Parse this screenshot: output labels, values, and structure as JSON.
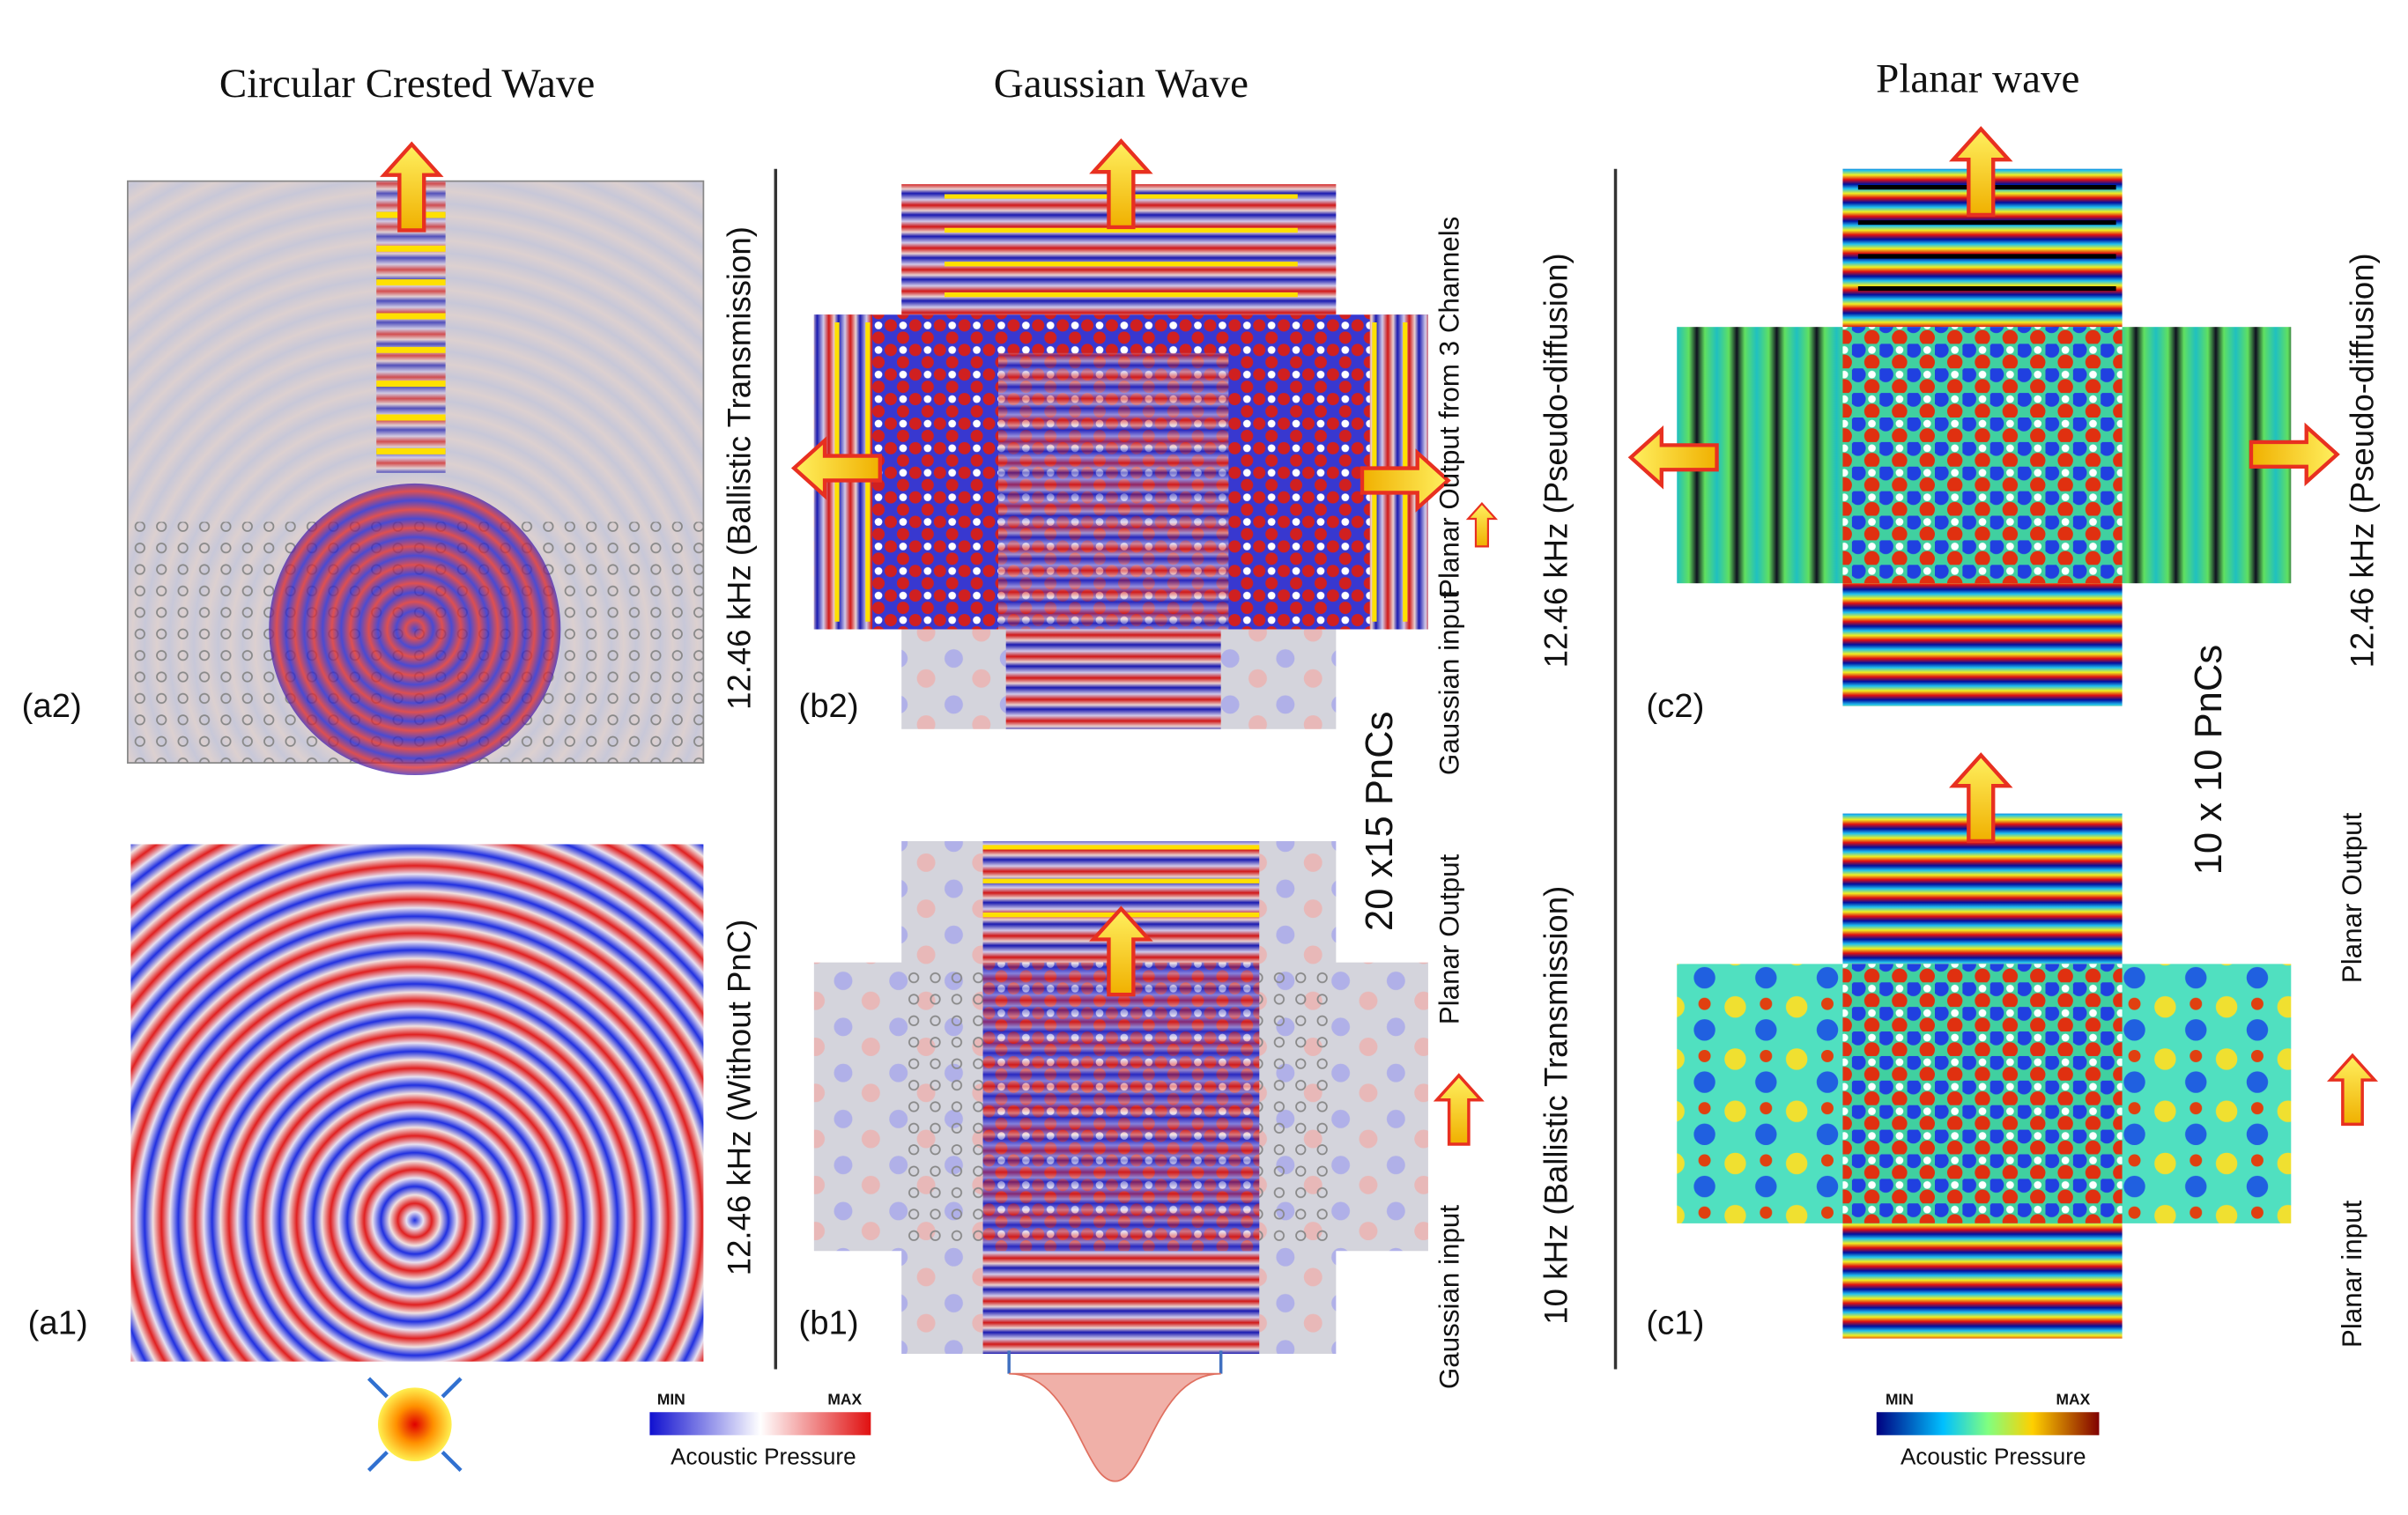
{
  "columns": [
    {
      "title": "Circular Crested Wave",
      "panels": [
        "(a2)",
        "(a1)"
      ],
      "side_labels": [
        "12.46 kHz (Ballistic Transmission)",
        "12.46 kHz (Without PnC)"
      ]
    },
    {
      "title": "Gaussian Wave",
      "panels": [
        "(b2)",
        "(b1)"
      ],
      "crystal": "20 x15 PnCs",
      "arrow_labels": [
        "Planar Output from 3 Channels",
        "Gaussian input",
        "Planar Output",
        "Gaussian input"
      ],
      "side_labels": [
        "12.46 kHz (Pseudo-diffusion)",
        "10 kHz (Ballistic Transmission)"
      ]
    },
    {
      "title": "Planar wave",
      "panels": [
        "(c2)",
        "(c1)"
      ],
      "crystal": "10 x 10 PnCs",
      "arrow_labels": [
        "Planar Output",
        "Planar input"
      ],
      "side_labels": [
        "12.46 kHz (Pseudo-diffusion)"
      ]
    }
  ],
  "legends": [
    {
      "min": "MIN",
      "max": "MAX",
      "label": "Acoustic Pressure"
    },
    {
      "min": "MIN",
      "max": "MAX",
      "label": "Acoustic Pressure"
    }
  ]
}
